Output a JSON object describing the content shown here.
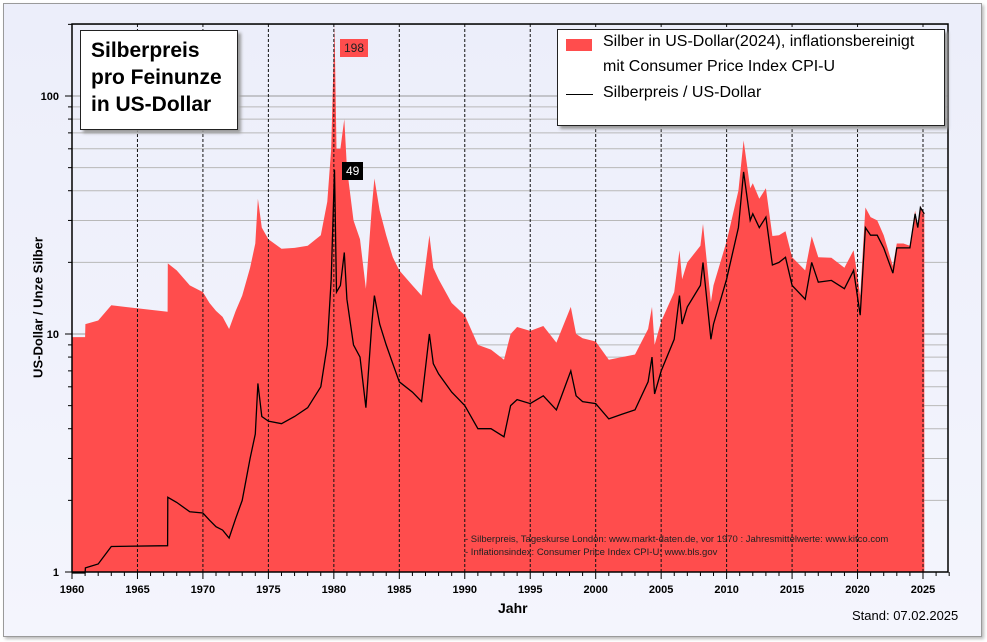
{
  "chart_data": {
    "type": "area",
    "title": "Silberpreis pro Feinunze in US-Dollar",
    "title_lines": [
      "Silberpreis",
      "pro Feinunze",
      "in US-Dollar"
    ],
    "xlabel": "Jahr",
    "ylabel": "US-Dollar / Unze Silber",
    "y_scale": "log",
    "xlim": [
      1960,
      2027
    ],
    "ylim": [
      1,
      200
    ],
    "x_ticks": [
      1960,
      1965,
      1970,
      1975,
      1980,
      1985,
      1990,
      1995,
      2000,
      2005,
      2010,
      2015,
      2020,
      2025
    ],
    "y_ticks": [
      1,
      10,
      100
    ],
    "grid": true,
    "legend_placement": "top-right",
    "colors": {
      "real": "#ff4d4d",
      "nominal": "#000000",
      "background": "#eceefa"
    },
    "series": [
      {
        "name": "Silber in US-Dollar(2024), inflationsbereinigt",
        "name_line2": "mit Consumer Price Index CPI-U",
        "type": "area",
        "key": "real"
      },
      {
        "name": "Silberpreis / US-Dollar",
        "type": "line",
        "key": "nominal"
      }
    ],
    "points": {
      "columns": [
        "year",
        "nominal",
        "real"
      ],
      "rows": [
        [
          1960.0,
          0.91,
          9.7
        ],
        [
          1961.0,
          0.92,
          9.7
        ],
        [
          1961.02,
          1.04,
          11.0
        ],
        [
          1962.0,
          1.08,
          11.4
        ],
        [
          1963.0,
          1.28,
          13.2
        ],
        [
          1967.3,
          1.29,
          12.4
        ],
        [
          1967.32,
          2.06,
          19.8
        ],
        [
          1968.0,
          1.96,
          18.5
        ],
        [
          1969.0,
          1.79,
          16
        ],
        [
          1970.0,
          1.77,
          15
        ],
        [
          1970.5,
          1.65,
          13.5
        ],
        [
          1971.0,
          1.55,
          12.5
        ],
        [
          1971.5,
          1.5,
          11.8
        ],
        [
          1972.0,
          1.39,
          10.5
        ],
        [
          1972.5,
          1.68,
          12.5
        ],
        [
          1973.0,
          2.0,
          14.5
        ],
        [
          1973.6,
          3.0,
          19
        ],
        [
          1974.0,
          3.8,
          24
        ],
        [
          1974.2,
          6.2,
          37
        ],
        [
          1974.5,
          4.5,
          28
        ],
        [
          1975.0,
          4.3,
          25
        ],
        [
          1976.0,
          4.2,
          22.8
        ],
        [
          1977.0,
          4.5,
          23
        ],
        [
          1978.0,
          4.9,
          23.5
        ],
        [
          1979.0,
          6.0,
          26
        ],
        [
          1979.5,
          9.0,
          36
        ],
        [
          1979.8,
          17,
          60
        ],
        [
          1980.05,
          49,
          198
        ],
        [
          1980.2,
          15,
          60
        ],
        [
          1980.5,
          16,
          60
        ],
        [
          1980.8,
          22,
          80
        ],
        [
          1981.0,
          14,
          50
        ],
        [
          1981.5,
          9,
          30
        ],
        [
          1982.0,
          8,
          25
        ],
        [
          1982.45,
          4.9,
          15.5
        ],
        [
          1982.9,
          11,
          34
        ],
        [
          1983.1,
          14.5,
          45
        ],
        [
          1983.5,
          11,
          33
        ],
        [
          1984.0,
          9,
          26
        ],
        [
          1984.5,
          7.5,
          21
        ],
        [
          1985.0,
          6.3,
          18.5
        ],
        [
          1986.0,
          5.7,
          16
        ],
        [
          1986.7,
          5.2,
          14.5
        ],
        [
          1987.3,
          10,
          26
        ],
        [
          1987.6,
          7.5,
          19
        ],
        [
          1988.0,
          6.8,
          17
        ],
        [
          1989.0,
          5.7,
          13.5
        ],
        [
          1990.0,
          5.0,
          12
        ],
        [
          1991.0,
          4.0,
          9
        ],
        [
          1992.0,
          4.0,
          8.6
        ],
        [
          1993.0,
          3.7,
          7.8
        ],
        [
          1993.5,
          5.0,
          10
        ],
        [
          1994.0,
          5.3,
          10.7
        ],
        [
          1995.0,
          5.1,
          10.3
        ],
        [
          1996.0,
          5.5,
          10.8
        ],
        [
          1997.0,
          4.8,
          9.2
        ],
        [
          1998.1,
          7.0,
          13
        ],
        [
          1998.5,
          5.5,
          10
        ],
        [
          1999.0,
          5.2,
          9.6
        ],
        [
          2000.0,
          5.1,
          9.3
        ],
        [
          2001.0,
          4.4,
          7.8
        ],
        [
          2002.0,
          4.6,
          8
        ],
        [
          2003.0,
          4.8,
          8.2
        ],
        [
          2004.0,
          6.3,
          10.5
        ],
        [
          2004.3,
          8.0,
          13
        ],
        [
          2004.5,
          5.6,
          9
        ],
        [
          2005.0,
          7.0,
          11.3
        ],
        [
          2006.0,
          9.5,
          15
        ],
        [
          2006.4,
          14.5,
          22.5
        ],
        [
          2006.6,
          11,
          17
        ],
        [
          2007.0,
          13,
          20
        ],
        [
          2008.0,
          16,
          23.5
        ],
        [
          2008.2,
          20,
          29
        ],
        [
          2008.8,
          9.5,
          13.6
        ],
        [
          2009.0,
          11,
          16
        ],
        [
          2010.0,
          17,
          24.5
        ],
        [
          2010.9,
          28,
          40
        ],
        [
          2011.3,
          48,
          65
        ],
        [
          2011.8,
          30,
          41
        ],
        [
          2012.0,
          32,
          43
        ],
        [
          2012.5,
          28,
          37
        ],
        [
          2013.0,
          31,
          41
        ],
        [
          2013.5,
          19.5,
          25.8
        ],
        [
          2014.0,
          20,
          26
        ],
        [
          2014.5,
          21,
          27
        ],
        [
          2015.0,
          16,
          21
        ],
        [
          2016.0,
          14,
          18.5
        ],
        [
          2016.5,
          20,
          25.7
        ],
        [
          2017.0,
          16.5,
          21
        ],
        [
          2018.0,
          16.8,
          20.9
        ],
        [
          2019.0,
          15.5,
          19
        ],
        [
          2019.7,
          18.5,
          22.5
        ],
        [
          2020.2,
          12,
          14.5
        ],
        [
          2020.6,
          28,
          34
        ],
        [
          2021.0,
          26,
          31
        ],
        [
          2021.5,
          26,
          30
        ],
        [
          2022.0,
          23,
          26
        ],
        [
          2022.7,
          18,
          19.3
        ],
        [
          2023.0,
          23,
          24
        ],
        [
          2023.5,
          23,
          24
        ],
        [
          2024.0,
          23,
          23.5
        ],
        [
          2024.4,
          32,
          33
        ],
        [
          2024.6,
          28,
          28.5
        ],
        [
          2024.8,
          34,
          34.5
        ],
        [
          2025.1,
          32,
          32
        ]
      ]
    },
    "annotations": [
      {
        "label": "198",
        "series": "real",
        "year": 1980.05,
        "value": 198
      },
      {
        "label": "49",
        "series": "nominal",
        "year": 1980.05,
        "value": 49
      }
    ],
    "notes": [
      "- Silberpreis, Tageskurse London: www.markt-daten.de, vor 1970 : Jahresmittelwerte: www.kitco.com",
      "- Inflationsindex: Consumer Price Index CPI-U: www.bls.gov"
    ],
    "stand": "Stand:  07.02.2025"
  }
}
